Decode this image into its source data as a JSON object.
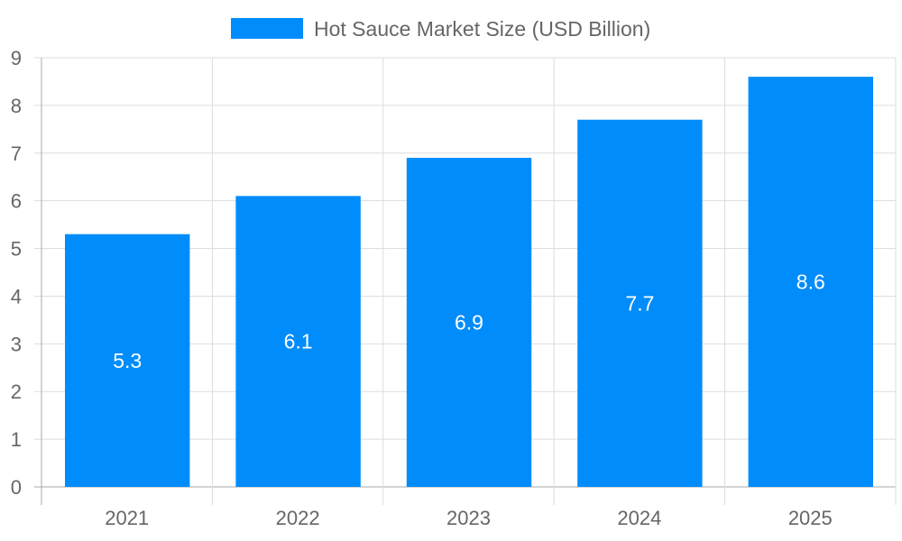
{
  "chart_data": {
    "type": "bar",
    "title": "",
    "xlabel": "",
    "ylabel": "",
    "categories": [
      "2021",
      "2022",
      "2023",
      "2024",
      "2025"
    ],
    "series": [
      {
        "name": "Hot Sauce Market Size (USD Billion)",
        "values": [
          5.3,
          6.1,
          6.9,
          7.7,
          8.6
        ],
        "color": "#008cfa"
      }
    ],
    "data_labels": [
      "5.3",
      "6.1",
      "6.9",
      "7.7",
      "8.6"
    ],
    "ylim": [
      0,
      9
    ],
    "yticks": [
      "0",
      "1",
      "2",
      "3",
      "4",
      "5",
      "6",
      "7",
      "8",
      "9"
    ],
    "grid": true,
    "legend_position": "top"
  }
}
